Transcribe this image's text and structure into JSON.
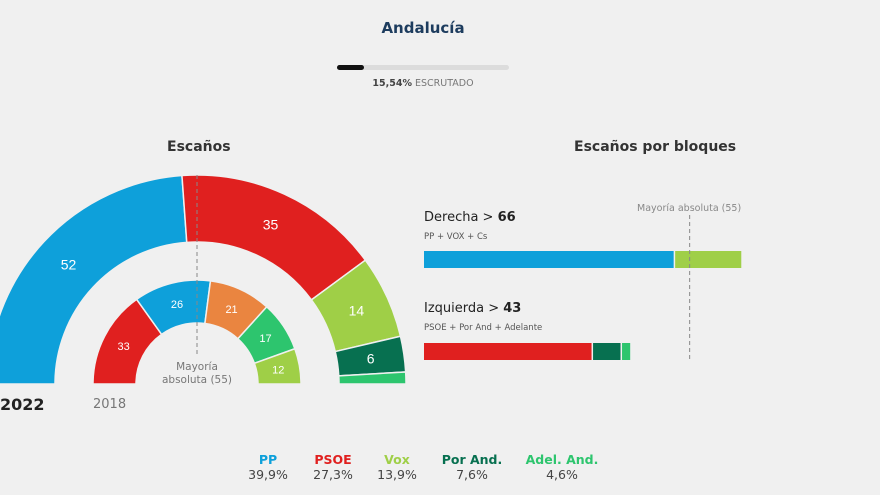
{
  "header": {
    "title": "Andalucía",
    "progress_pct": 15.54,
    "progress_value": "15,54%",
    "progress_label": "ESCRUTADO"
  },
  "colors": {
    "PP": "#0ea0da",
    "PSOE": "#e0201f",
    "Vox": "#9fcf47",
    "Por And.": "#077050",
    "Adel. And.": "#2dc56e",
    "Cs": "#ea8540"
  },
  "chart_data": [
    {
      "type": "pie",
      "subtype": "parliament-semicircle",
      "title": "Escaños",
      "center_label": "Mayoría absoluta (55)",
      "majority": 55,
      "rings": [
        {
          "name": "2022",
          "slices": [
            {
              "party": "PP",
              "value": 52
            },
            {
              "party": "PSOE",
              "value": 35
            },
            {
              "party": "Vox",
              "value": 14
            },
            {
              "party": "Por And.",
              "value": 6
            },
            {
              "party": "Adel. And.",
              "value": 2
            }
          ]
        },
        {
          "name": "2018",
          "slices": [
            {
              "party": "PSOE",
              "value": 33
            },
            {
              "party": "PP",
              "value": 26
            },
            {
              "party": "Cs",
              "value": 21
            },
            {
              "party": "Adel. And.",
              "value": 17
            },
            {
              "party": "Vox",
              "value": 12
            }
          ]
        }
      ]
    },
    {
      "type": "bar",
      "subtype": "stacked-horizontal",
      "title": "Escaños por bloques",
      "majority_label": "Mayoría absoluta (55)",
      "majority": 55,
      "xlim": [
        0,
        70
      ],
      "blocks": [
        {
          "name": "Derecha",
          "total": "66",
          "parties": "PP + VOX + Cs",
          "segments": [
            {
              "party": "PP",
              "value": 52
            },
            {
              "party": "Vox",
              "value": 14
            }
          ]
        },
        {
          "name": "Izquierda",
          "total": "43",
          "parties": "PSOE + Por And + Adelante",
          "segments": [
            {
              "party": "PSOE",
              "value": 35
            },
            {
              "party": "Por And.",
              "value": 6
            },
            {
              "party": "Adel. And.",
              "value": 2
            }
          ]
        }
      ]
    }
  ],
  "legend": [
    {
      "name": "PP",
      "value": "39,9%"
    },
    {
      "name": "PSOE",
      "value": "27,3%"
    },
    {
      "name": "Vox",
      "value": "13,9%"
    },
    {
      "name": "Por And.",
      "value": "7,6%"
    },
    {
      "name": "Adel. And.",
      "value": "4,6%"
    }
  ]
}
